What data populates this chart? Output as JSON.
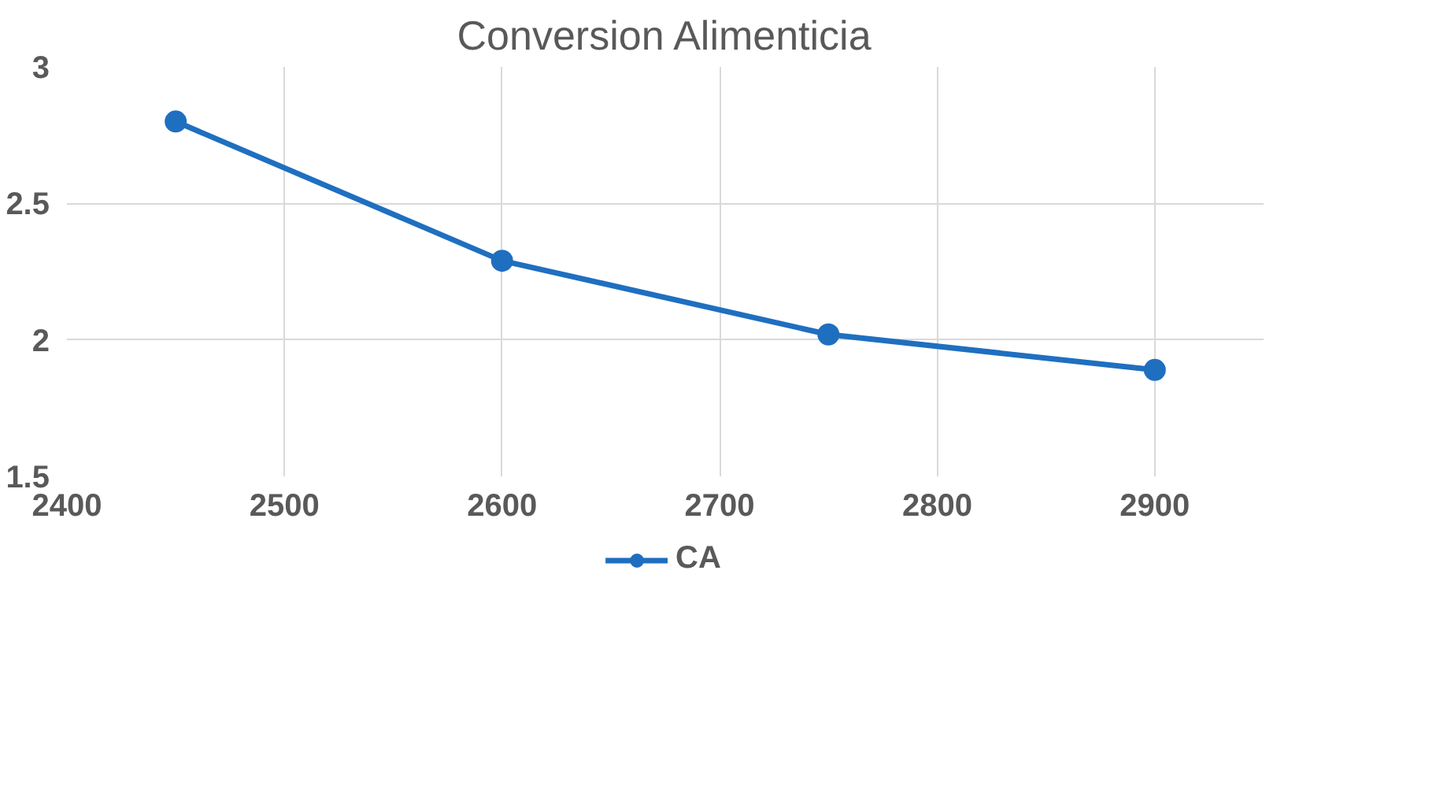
{
  "chart_data": {
    "type": "line",
    "title": "Conversion Alimenticia",
    "x": [
      2450,
      2600,
      2750,
      2900
    ],
    "series": [
      {
        "name": "CA",
        "color": "#1f6fc0",
        "values": [
          2.8,
          2.29,
          2.02,
          1.89
        ]
      }
    ],
    "xlim": [
      2400,
      2950
    ],
    "xticks": [
      2400,
      2500,
      2600,
      2700,
      2800,
      2900
    ],
    "ylim": [
      1.5,
      3
    ],
    "yticks": [
      1.5,
      2,
      2.5,
      3
    ],
    "grid": true,
    "legend": "bottom",
    "marker": "circle",
    "line_style": "solid"
  }
}
